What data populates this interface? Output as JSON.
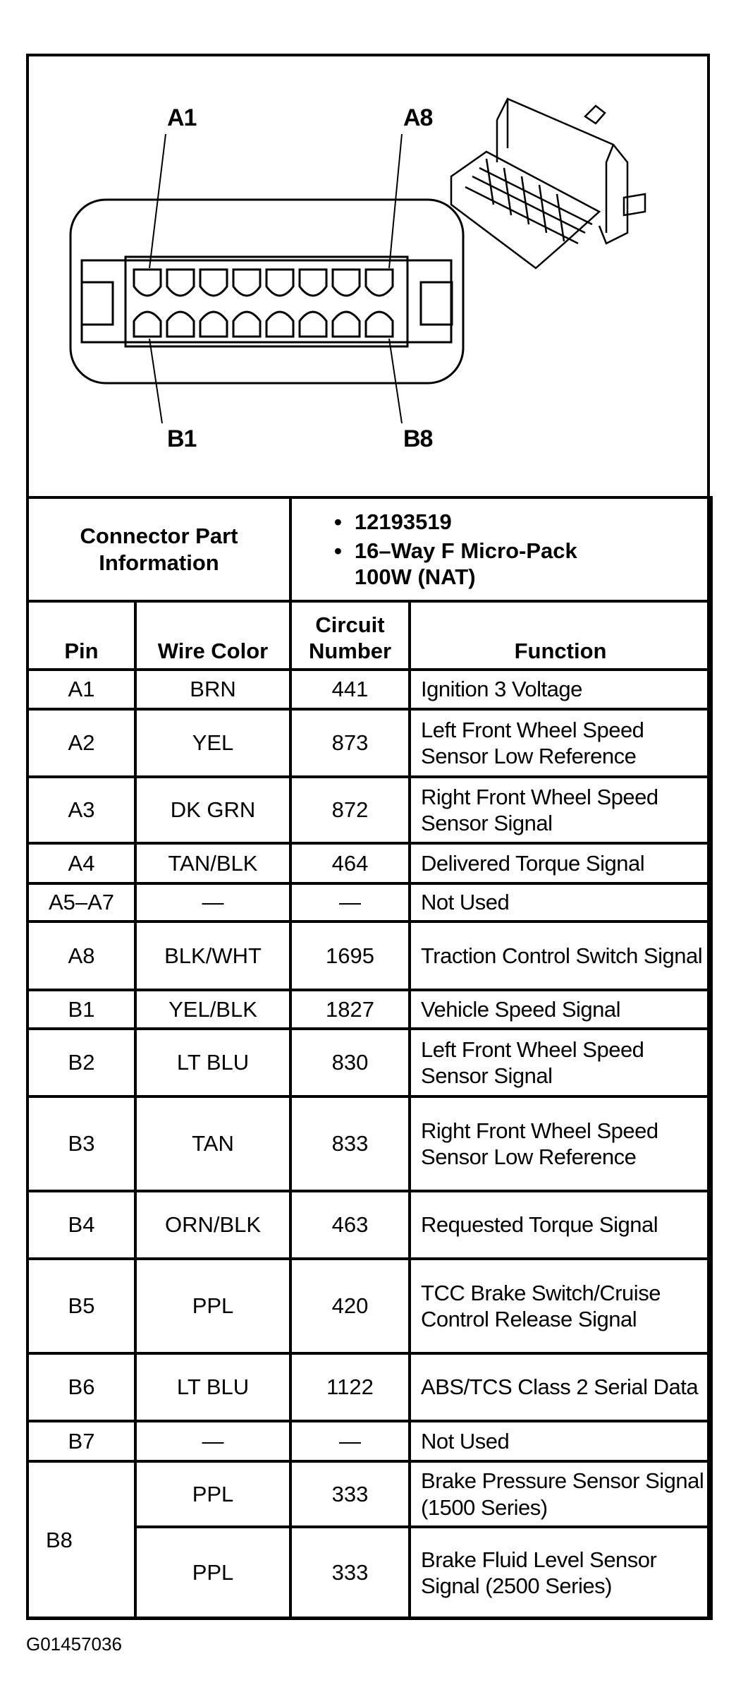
{
  "diagram": {
    "pin_labels": {
      "top_left": "A1",
      "top_right": "A8",
      "bottom_left": "B1",
      "bottom_right": "B8"
    }
  },
  "connector_info": {
    "label": "Connector Part Information",
    "items": [
      "12193519",
      "16–Way F Micro-Pack 100W (NAT)"
    ]
  },
  "headers": {
    "pin": "Pin",
    "wire_color": "Wire Color",
    "circuit_number": "Circuit Number",
    "function": "Function"
  },
  "rows": [
    {
      "pin": "A1",
      "color": "BRN",
      "circuit": "441",
      "function": "Ignition 3 Voltage"
    },
    {
      "pin": "A2",
      "color": "YEL",
      "circuit": "873",
      "function": "Left Front Wheel Speed Sensor Low Reference"
    },
    {
      "pin": "A3",
      "color": "DK GRN",
      "circuit": "872",
      "function": "Right Front Wheel Speed Sensor Signal"
    },
    {
      "pin": "A4",
      "color": "TAN/BLK",
      "circuit": "464",
      "function": "Delivered Torque Signal"
    },
    {
      "pin": "A5–A7",
      "color": "—",
      "circuit": "—",
      "function": "Not Used"
    },
    {
      "pin": "A8",
      "color": "BLK/WHT",
      "circuit": "1695",
      "function": "Traction Control Switch Signal"
    },
    {
      "pin": "B1",
      "color": "YEL/BLK",
      "circuit": "1827",
      "function": "Vehicle Speed Signal"
    },
    {
      "pin": "B2",
      "color": "LT BLU",
      "circuit": "830",
      "function": "Left Front Wheel Speed Sensor Signal"
    },
    {
      "pin": "B3",
      "color": "TAN",
      "circuit": "833",
      "function": "Right Front Wheel Speed Sensor Low Reference"
    },
    {
      "pin": "B4",
      "color": "ORN/BLK",
      "circuit": "463",
      "function": "Requested Torque Signal"
    },
    {
      "pin": "B5",
      "color": "PPL",
      "circuit": "420",
      "function": "TCC Brake Switch/Cruise Control Release Signal"
    },
    {
      "pin": "B6",
      "color": "LT BLU",
      "circuit": "1122",
      "function": "ABS/TCS Class 2 Serial Data"
    },
    {
      "pin": "B7",
      "color": "—",
      "circuit": "—",
      "function": "Not Used"
    },
    {
      "pin": "B8",
      "color": "PPL",
      "circuit": "333",
      "function": "Brake Pressure Sensor Signal (1500 Series)"
    },
    {
      "pin": "B8",
      "color": "PPL",
      "circuit": "333",
      "function": "Brake Fluid Level Sensor Signal (2500 Series)"
    }
  ],
  "figure_code": "G01457036"
}
